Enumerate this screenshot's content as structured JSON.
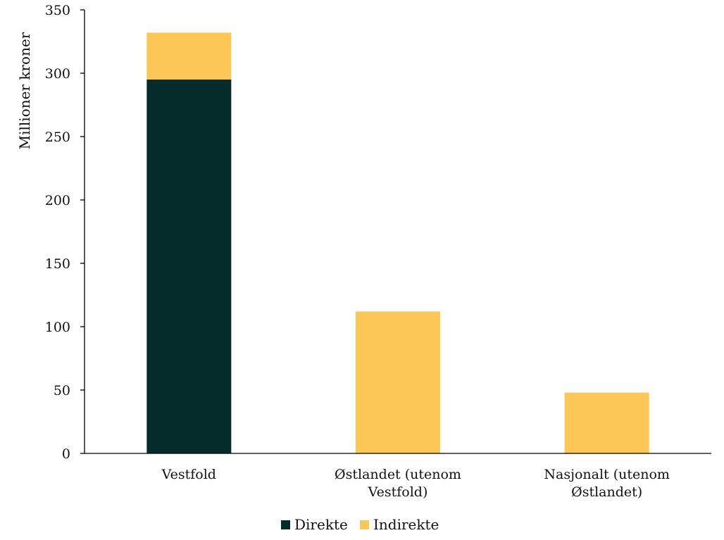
{
  "chart_data": {
    "type": "bar",
    "stacked": true,
    "categories": [
      [
        "Vestfold"
      ],
      [
        "Østlandet (utenom",
        "Vestfold)"
      ],
      [
        "Nasjonalt (utenom",
        "Østlandet)"
      ]
    ],
    "series": [
      {
        "name": "Direkte",
        "values": [
          295,
          0,
          0
        ],
        "color": "#062b2b"
      },
      {
        "name": "Indirekte",
        "values": [
          37,
          112,
          48
        ],
        "color": "#fcc757"
      }
    ],
    "ylabel": "Millioner kroner",
    "ylim": [
      0,
      350
    ],
    "yticks": [
      0,
      50,
      100,
      150,
      200,
      250,
      300,
      350
    ],
    "grid": false,
    "legend_position": "bottom"
  }
}
